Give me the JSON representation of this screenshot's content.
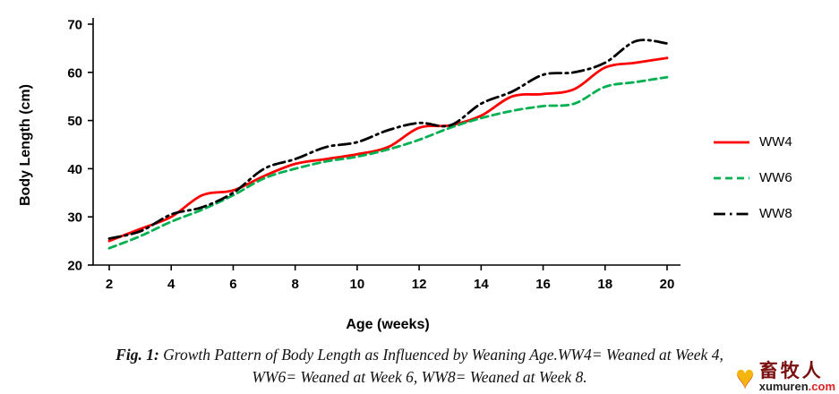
{
  "figure": {
    "caption_label": "Fig. 1:",
    "caption_line1": " Growth Pattern of Body Length as Influenced by Weaning Age.WW4= Weaned at Week 4,",
    "caption_line2": "WW6= Weaned at Week 6, WW8= Weaned at Week 8."
  },
  "watermark": {
    "cn": "畜牧人",
    "site_name": "xumuren",
    "site_tld": ".com",
    "logo_color": "#f6b40e"
  },
  "chart_data": {
    "type": "line",
    "title": "",
    "xlabel": "Age (weeks)",
    "ylabel": "Body Length (cm)",
    "xlim": [
      2,
      20
    ],
    "ylim": [
      20,
      70
    ],
    "xticks": [
      2,
      4,
      6,
      8,
      10,
      12,
      14,
      16,
      18,
      20
    ],
    "yticks": [
      20,
      30,
      40,
      50,
      60,
      70
    ],
    "grid": false,
    "legend_position": "right",
    "x": [
      2,
      3,
      4,
      5,
      6,
      7,
      8,
      9,
      10,
      11,
      12,
      13,
      14,
      15,
      16,
      17,
      18,
      19,
      20
    ],
    "series": [
      {
        "name": "WW4",
        "color": "#ff0000",
        "dash": "",
        "values": [
          25,
          27.5,
          30,
          34.5,
          35.5,
          38.5,
          41,
          42,
          43,
          44.5,
          48.5,
          49,
          51,
          55,
          55.5,
          56.5,
          61,
          62,
          63
        ]
      },
      {
        "name": "WW6",
        "color": "#00b050",
        "dash": "8 5",
        "values": [
          23.5,
          26,
          29,
          31.5,
          34.5,
          38,
          40,
          41.5,
          42.5,
          44,
          46,
          48.5,
          50.5,
          52,
          53,
          53.5,
          57,
          58,
          59
        ]
      },
      {
        "name": "WW8",
        "color": "#000000",
        "dash": "13 5 2.5 5",
        "values": [
          25.5,
          27,
          30.5,
          32,
          35,
          40,
          42,
          44.5,
          45.5,
          48,
          49.5,
          49,
          53.5,
          56,
          59.5,
          60,
          62,
          66.5,
          66
        ]
      }
    ]
  }
}
